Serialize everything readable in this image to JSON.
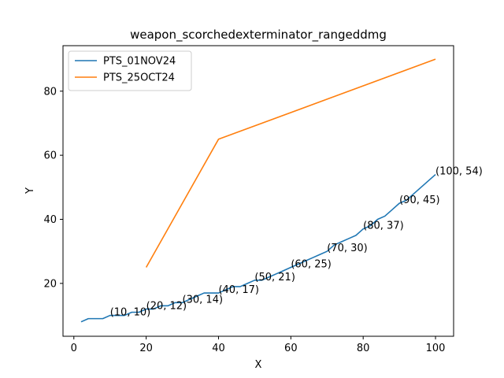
{
  "chart_data": {
    "type": "line",
    "title": "weapon_scorchedexterminator_rangeddmg",
    "xlabel": "X",
    "ylabel": "Y",
    "xlim": [
      -3,
      105
    ],
    "ylim": [
      3.5,
      94.2
    ],
    "xticks": [
      0,
      20,
      40,
      60,
      80,
      100
    ],
    "yticks": [
      20,
      40,
      60,
      80
    ],
    "legend_position": "top-left",
    "grid": false,
    "series": [
      {
        "name": "PTS_01NOV24",
        "color": "#1f77b4",
        "x": [
          2,
          4,
          6,
          8,
          10,
          12,
          14,
          16,
          18,
          20,
          22,
          24,
          26,
          28,
          30,
          32,
          34,
          36,
          38,
          40,
          42,
          44,
          46,
          48,
          50,
          52,
          54,
          56,
          58,
          60,
          62,
          64,
          66,
          68,
          70,
          72,
          74,
          76,
          78,
          80,
          82,
          84,
          86,
          88,
          90,
          92,
          94,
          96,
          98,
          100
        ],
        "y": [
          8,
          9,
          9,
          9,
          10,
          10,
          10,
          11,
          11,
          12,
          12,
          13,
          13,
          14,
          14,
          15,
          16,
          17,
          17,
          17,
          18,
          19,
          19,
          20,
          21,
          21,
          22,
          23,
          24,
          25,
          26,
          27,
          28,
          29,
          30,
          32,
          33,
          34,
          35,
          37,
          38,
          40,
          41,
          43,
          45,
          46,
          48,
          50,
          52,
          54
        ]
      },
      {
        "name": "PTS_25OCT24",
        "color": "#ff7f0e",
        "x": [
          20,
          40,
          100
        ],
        "y": [
          25,
          65,
          90
        ]
      }
    ],
    "annotations": [
      {
        "x": 10,
        "y": 10,
        "text": "(10, 10)"
      },
      {
        "x": 20,
        "y": 12,
        "text": "(20, 12)"
      },
      {
        "x": 30,
        "y": 14,
        "text": "(30, 14)"
      },
      {
        "x": 40,
        "y": 17,
        "text": "(40, 17)"
      },
      {
        "x": 50,
        "y": 21,
        "text": "(50, 21)"
      },
      {
        "x": 60,
        "y": 25,
        "text": "(60, 25)"
      },
      {
        "x": 70,
        "y": 30,
        "text": "(70, 30)"
      },
      {
        "x": 80,
        "y": 37,
        "text": "(80, 37)"
      },
      {
        "x": 90,
        "y": 45,
        "text": "(90, 45)"
      },
      {
        "x": 100,
        "y": 54,
        "text": "(100, 54)"
      }
    ]
  }
}
